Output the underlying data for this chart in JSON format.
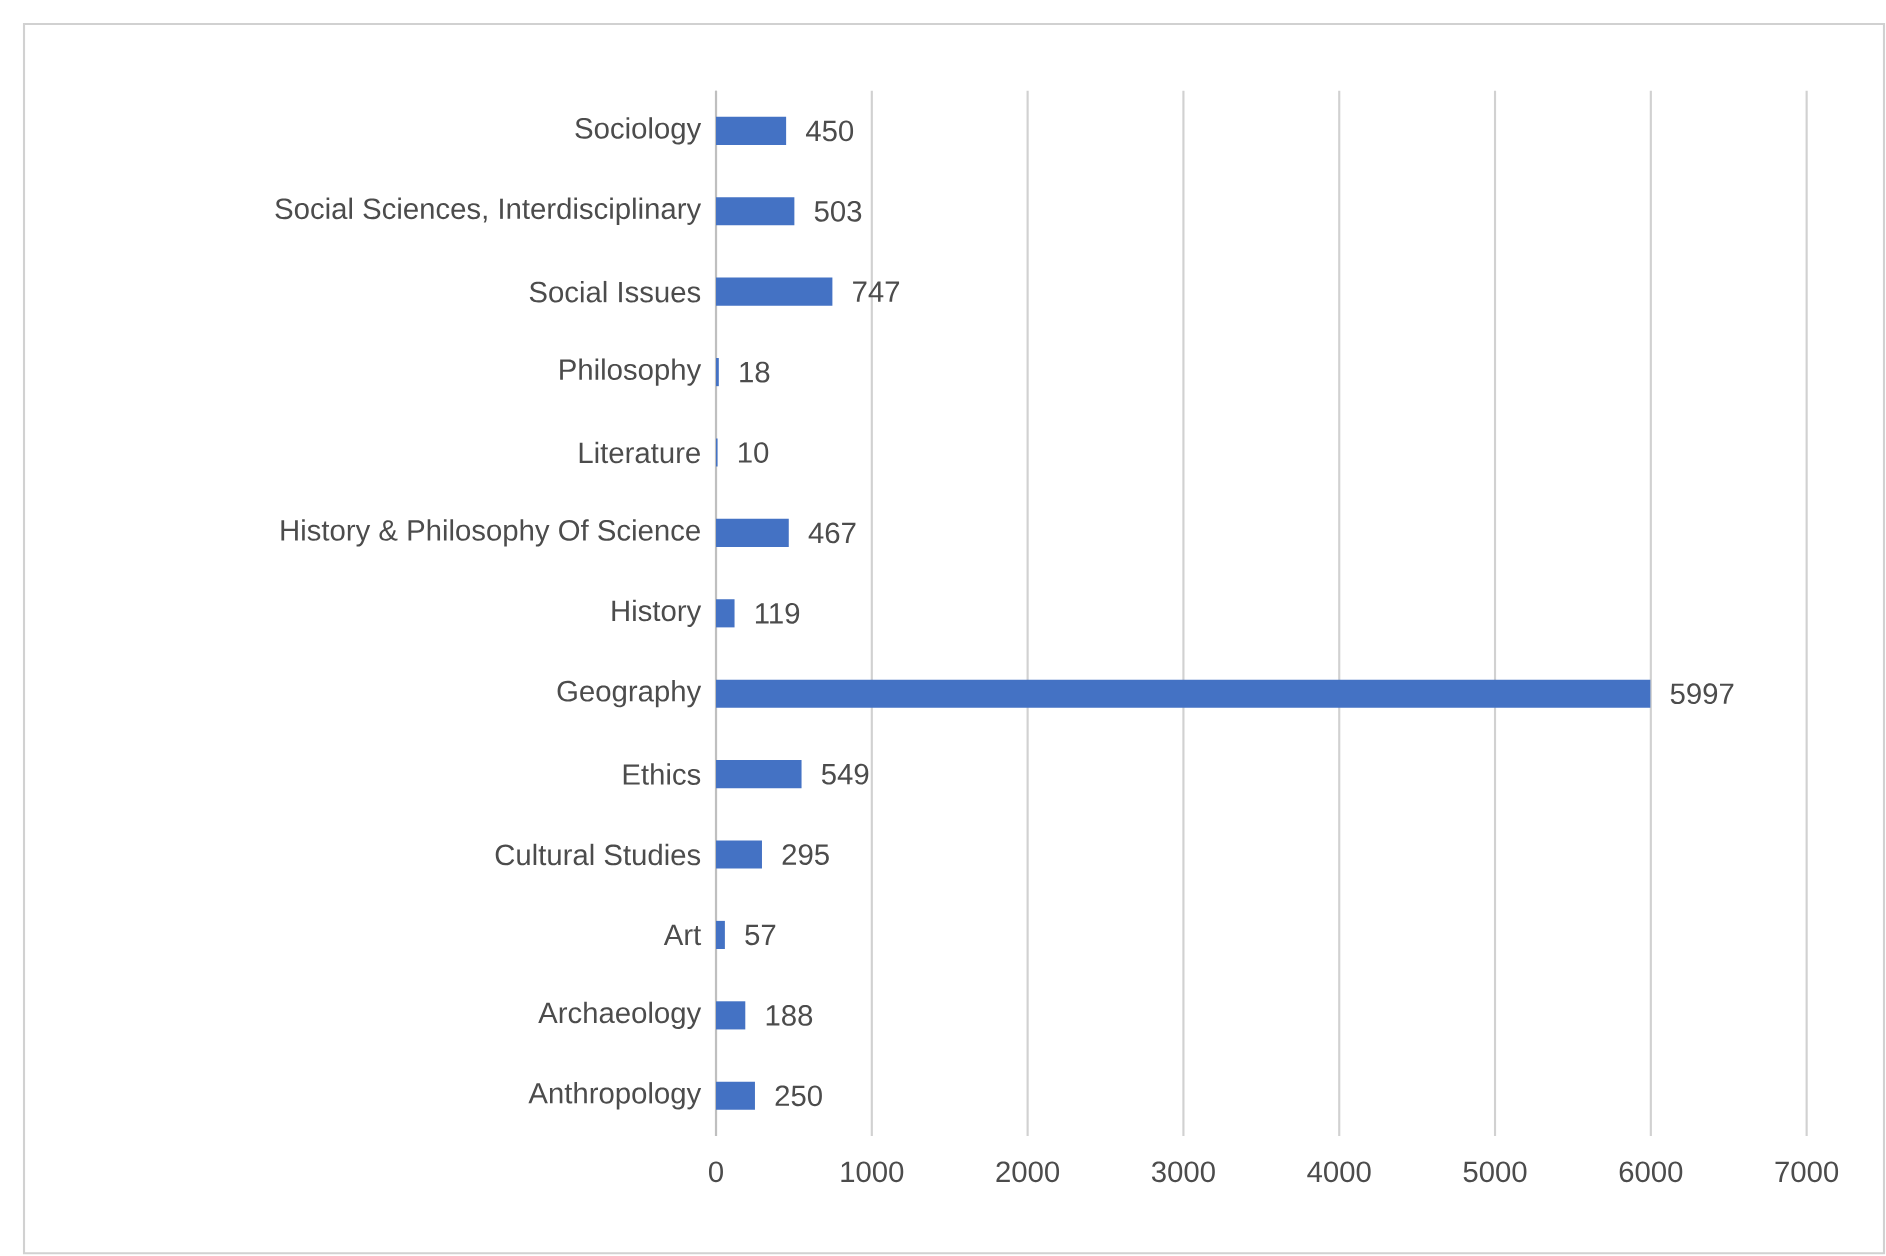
{
  "chart_data": {
    "type": "bar",
    "orientation": "horizontal",
    "categories": [
      "Sociology",
      "Social Sciences, Interdisciplinary",
      "Social Issues",
      "Philosophy",
      "Literature",
      "History & Philosophy Of Science",
      "History",
      "Geography",
      "Ethics",
      "Cultural Studies",
      "Art",
      "Archaeology",
      "Anthropology"
    ],
    "values": [
      450,
      503,
      747,
      18,
      10,
      467,
      119,
      5997,
      549,
      295,
      57,
      188,
      250
    ],
    "color": "#4472c4",
    "xlim": [
      0,
      7000
    ],
    "xticks": [
      0,
      1000,
      2000,
      3000,
      4000,
      5000,
      6000,
      7000
    ],
    "grid": "x",
    "data_labels": true
  }
}
